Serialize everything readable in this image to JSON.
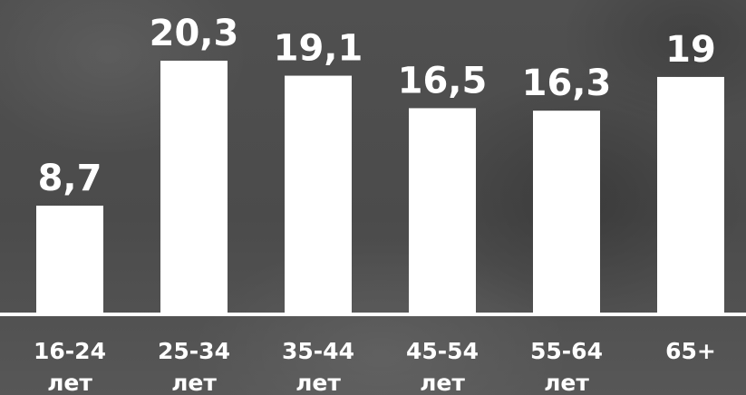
{
  "chart_data": {
    "type": "bar",
    "categories": [
      [
        "16-24",
        "лет"
      ],
      [
        "25-34",
        "лет"
      ],
      [
        "35-44",
        "лет"
      ],
      [
        "45-54",
        "лет"
      ],
      [
        "55-64",
        "лет"
      ],
      [
        "65+"
      ]
    ],
    "values": [
      8.7,
      20.3,
      19.1,
      16.5,
      16.3,
      19
    ],
    "value_labels": [
      "8,7",
      "20,3",
      "19,1",
      "16,5",
      "16,3",
      "19"
    ],
    "ylim": [
      0,
      20.3
    ],
    "grid": false,
    "legend": "none",
    "colors": {
      "bar": "#ffffff",
      "text": "#ffffff",
      "axis": "#ffffff",
      "background": "#4a4a4a"
    }
  }
}
